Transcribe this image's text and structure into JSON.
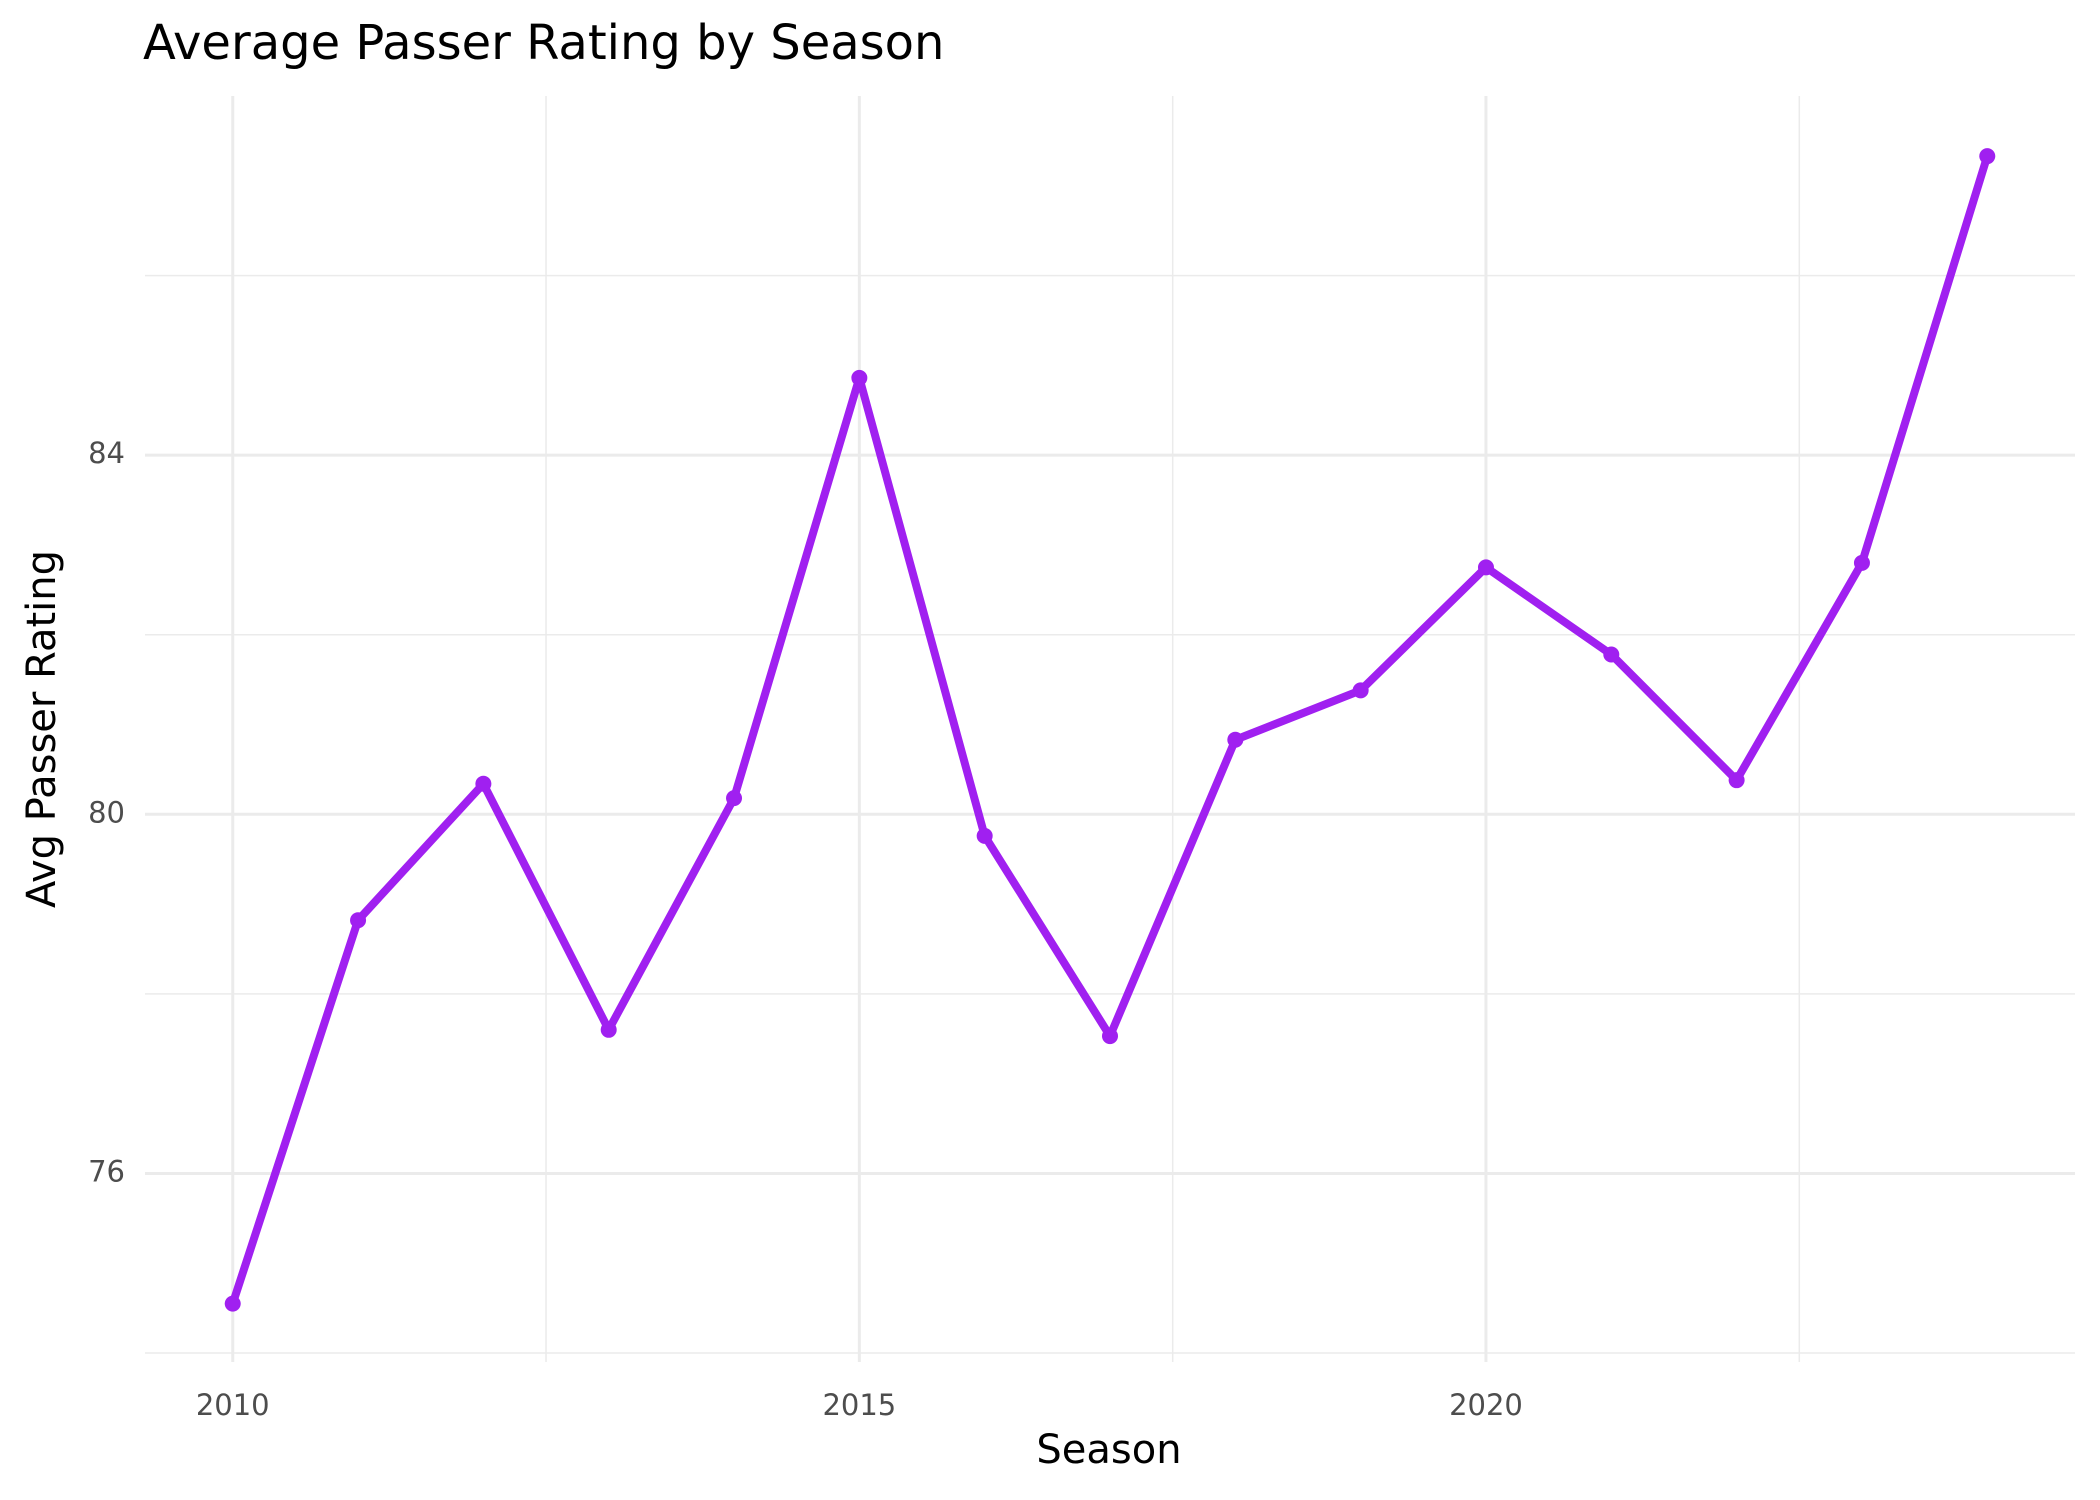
{
  "chart_data": {
    "type": "line",
    "title": "Average Passer Rating by Season",
    "x_label": "Season",
    "y_label": "Avg Passer Rating",
    "x": [
      2010,
      2011,
      2012,
      2013,
      2014,
      2015,
      2016,
      2017,
      2018,
      2019,
      2020,
      2021,
      2022,
      2023,
      2024
    ],
    "series": [
      {
        "color": "#a020f0",
        "values": [
          74.55,
          78.82,
          80.34,
          77.6,
          80.18,
          84.86,
          79.76,
          77.53,
          80.83,
          81.38,
          82.75,
          81.78,
          80.38,
          82.8,
          87.33
        ]
      }
    ],
    "xlim": [
      2009.3,
      2024.7
    ],
    "xticks": [
      2010,
      2015,
      2020
    ],
    "ylim": [
      73.9,
      88.0
    ],
    "yticks": [
      76,
      80,
      84
    ],
    "grid": true
  }
}
